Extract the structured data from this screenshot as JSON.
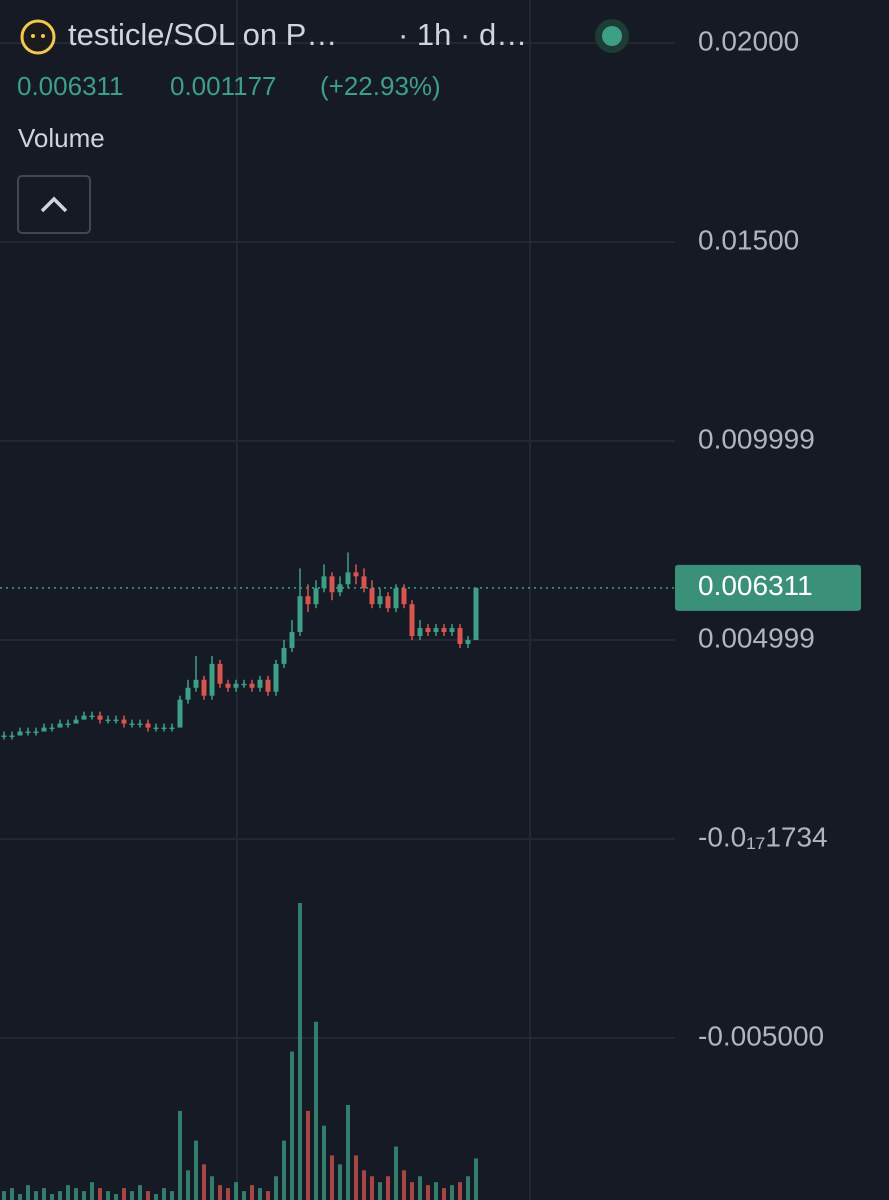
{
  "header": {
    "pair": "testicle/SOL on P…",
    "interval": "· 1h · d…",
    "last": "0.006311",
    "change": "0.001177",
    "change_pct": "(+22.93%)",
    "volume_label": "Volume"
  },
  "chart_data": {
    "type": "candlestick",
    "ylim": [
      -0.00907,
      0.02108
    ],
    "yticks": [
      {
        "value": 0.02,
        "label": "0.02000"
      },
      {
        "value": 0.015,
        "label": "0.01500"
      },
      0.009999,
      0.004999,
      {
        "value": -1.734e-18,
        "label": "-0.0₁₇1734"
      },
      {
        "value": -0.005,
        "label": "-0.005000"
      }
    ],
    "grid": true,
    "up_color": "#3d9f86",
    "down_color": "#d95550",
    "open": [
      0.0026,
      0.0026,
      0.0026,
      0.0027,
      0.0027,
      0.0027,
      0.0028,
      0.0028,
      0.0029,
      0.0029,
      0.003,
      0.0031,
      0.0031,
      0.003,
      0.003,
      0.003,
      0.0029,
      0.0029,
      0.0029,
      0.0028,
      0.0028,
      0.0028,
      0.0028,
      0.0035,
      0.0038,
      0.004,
      0.0036,
      0.0044,
      0.0039,
      0.0038,
      0.0039,
      0.0039,
      0.0038,
      0.004,
      0.0037,
      0.0044,
      0.0048,
      0.0052,
      0.0061,
      0.0059,
      0.0063,
      0.0066,
      0.0062,
      0.0064,
      0.0067,
      0.0066,
      0.0063,
      0.0059,
      0.0061,
      0.0058,
      0.0063,
      0.0059,
      0.0051,
      0.0053,
      0.0052,
      0.0053,
      0.0052,
      0.0053,
      0.0049,
      0.005
    ],
    "high": [
      0.0027,
      0.0027,
      0.0028,
      0.0028,
      0.0028,
      0.0029,
      0.0029,
      0.003,
      0.003,
      0.0031,
      0.0032,
      0.0032,
      0.0032,
      0.0031,
      0.0031,
      0.0031,
      0.003,
      0.003,
      0.003,
      0.0029,
      0.0029,
      0.0029,
      0.0036,
      0.004,
      0.0046,
      0.0041,
      0.0046,
      0.0045,
      0.004,
      0.004,
      0.004,
      0.004,
      0.0041,
      0.0041,
      0.0045,
      0.005,
      0.0055,
      0.0068,
      0.0064,
      0.0065,
      0.0069,
      0.0067,
      0.0066,
      0.0072,
      0.0069,
      0.0068,
      0.0065,
      0.0063,
      0.0062,
      0.0064,
      0.0064,
      0.006,
      0.0055,
      0.0054,
      0.0054,
      0.0054,
      0.0054,
      0.0054,
      0.0051,
      0.006311
    ],
    "low": [
      0.0025,
      0.0025,
      0.0026,
      0.0026,
      0.0026,
      0.0027,
      0.0027,
      0.0028,
      0.0028,
      0.0029,
      0.003,
      0.003,
      0.0029,
      0.0029,
      0.0029,
      0.0028,
      0.0028,
      0.0028,
      0.0027,
      0.0027,
      0.0027,
      0.0027,
      0.0028,
      0.0034,
      0.0037,
      0.0035,
      0.0035,
      0.0038,
      0.0037,
      0.0037,
      0.0038,
      0.0037,
      0.0037,
      0.0036,
      0.0036,
      0.0043,
      0.0047,
      0.0051,
      0.0057,
      0.0058,
      0.0062,
      0.006,
      0.0061,
      0.0063,
      0.0064,
      0.0062,
      0.0058,
      0.0058,
      0.0057,
      0.0057,
      0.0058,
      0.005,
      0.005,
      0.0051,
      0.0051,
      0.0051,
      0.0051,
      0.0048,
      0.0048,
      0.005
    ],
    "close": [
      0.0026,
      0.0026,
      0.0027,
      0.0027,
      0.0027,
      0.0028,
      0.0028,
      0.0029,
      0.0029,
      0.003,
      0.0031,
      0.0031,
      0.003,
      0.003,
      0.003,
      0.0029,
      0.0029,
      0.0029,
      0.0028,
      0.0028,
      0.0028,
      0.0028,
      0.0035,
      0.0038,
      0.004,
      0.0036,
      0.0044,
      0.0039,
      0.0038,
      0.0039,
      0.0039,
      0.0038,
      0.004,
      0.0037,
      0.0044,
      0.0048,
      0.0052,
      0.0061,
      0.0059,
      0.0063,
      0.0066,
      0.0062,
      0.0064,
      0.0067,
      0.0066,
      0.0063,
      0.0059,
      0.0061,
      0.0058,
      0.0063,
      0.0059,
      0.0051,
      0.0053,
      0.0052,
      0.0053,
      0.0052,
      0.0053,
      0.0049,
      0.005,
      0.006311
    ],
    "volume": [
      3,
      4,
      2,
      5,
      3,
      4,
      2,
      3,
      5,
      4,
      3,
      6,
      4,
      3,
      2,
      4,
      3,
      5,
      3,
      2,
      4,
      3,
      30,
      10,
      20,
      12,
      8,
      5,
      4,
      6,
      3,
      5,
      4,
      3,
      8,
      20,
      50,
      100,
      30,
      60,
      25,
      15,
      12,
      32,
      15,
      10,
      8,
      6,
      8,
      18,
      10,
      6,
      8,
      5,
      6,
      4,
      5,
      6,
      8,
      14
    ],
    "volume_lim": [
      0,
      100
    ]
  }
}
